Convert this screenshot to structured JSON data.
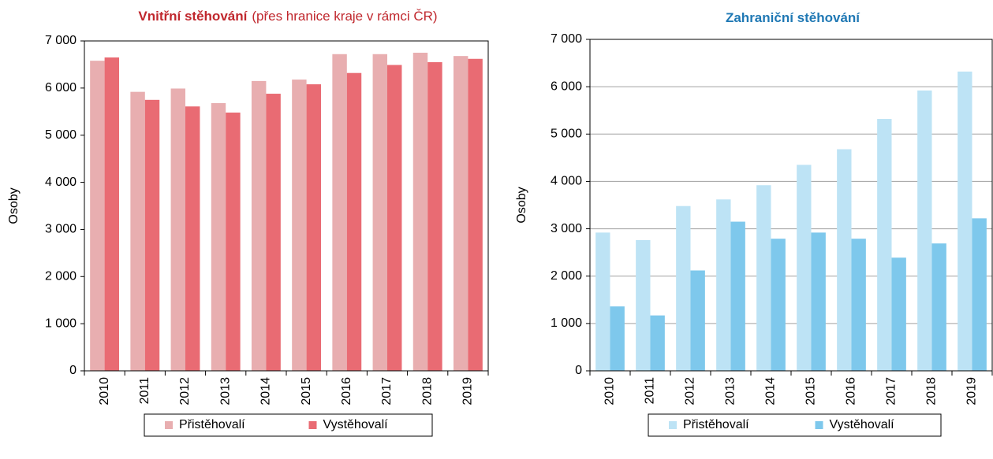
{
  "chart_data": [
    {
      "type": "bar",
      "title": "Vnitřní stěhování",
      "subtitle": "(přes hranice kraje v rámci ČR)",
      "title_color": "#c0272d",
      "ylabel": "Osoby",
      "categories": [
        "2010",
        "2011",
        "2012",
        "2013",
        "2014",
        "2015",
        "2016",
        "2017",
        "2018",
        "2019"
      ],
      "series": [
        {
          "name": "Přistěhovalí",
          "color": "#e8aeb0",
          "values": [
            6580,
            5920,
            5990,
            5680,
            6150,
            6180,
            6720,
            6720,
            6750,
            6680
          ]
        },
        {
          "name": "Vystěhovalí",
          "color": "#e96b73",
          "values": [
            6650,
            5750,
            5610,
            5480,
            5880,
            6080,
            6320,
            6490,
            6550,
            6620
          ]
        }
      ],
      "ylim": [
        0,
        7000
      ],
      "yticks": [
        0,
        {
          "value": 1000,
          "label": "1 000"
        },
        {
          "value": 2000,
          "label": "2 000"
        },
        {
          "value": 3000,
          "label": "3 000"
        },
        {
          "value": 4000,
          "label": "4 000"
        },
        {
          "value": 5000,
          "label": "5 000"
        },
        {
          "value": 6000,
          "label": "6 000"
        },
        {
          "value": 7000,
          "label": "7 000"
        }
      ],
      "grid": false,
      "legend": "bottom"
    },
    {
      "type": "bar",
      "title": "Zahraniční stěhování",
      "title_color": "#1f78b4",
      "ylabel": "Osoby",
      "categories": [
        "2010",
        "2011",
        "2012",
        "2013",
        "2014",
        "2015",
        "2016",
        "2017",
        "2018",
        "2019"
      ],
      "series": [
        {
          "name": "Přistěhovalí",
          "color": "#bde3f5",
          "values": [
            2920,
            2760,
            3480,
            3620,
            3920,
            4350,
            4680,
            5320,
            5920,
            6320
          ]
        },
        {
          "name": "Vystěhovalí",
          "color": "#7ec8ec",
          "values": [
            1360,
            1170,
            2120,
            3150,
            2790,
            2920,
            2790,
            2390,
            2690,
            3220
          ]
        }
      ],
      "ylim": [
        0,
        7000
      ],
      "yticks": [
        0,
        {
          "value": 1000,
          "label": "1 000"
        },
        {
          "value": 2000,
          "label": "2 000"
        },
        {
          "value": 3000,
          "label": "3 000"
        },
        {
          "value": 4000,
          "label": "4 000"
        },
        {
          "value": 5000,
          "label": "5 000"
        },
        {
          "value": 6000,
          "label": "6 000"
        },
        {
          "value": 7000,
          "label": "7 000"
        }
      ],
      "grid": true,
      "legend": "bottom"
    }
  ]
}
